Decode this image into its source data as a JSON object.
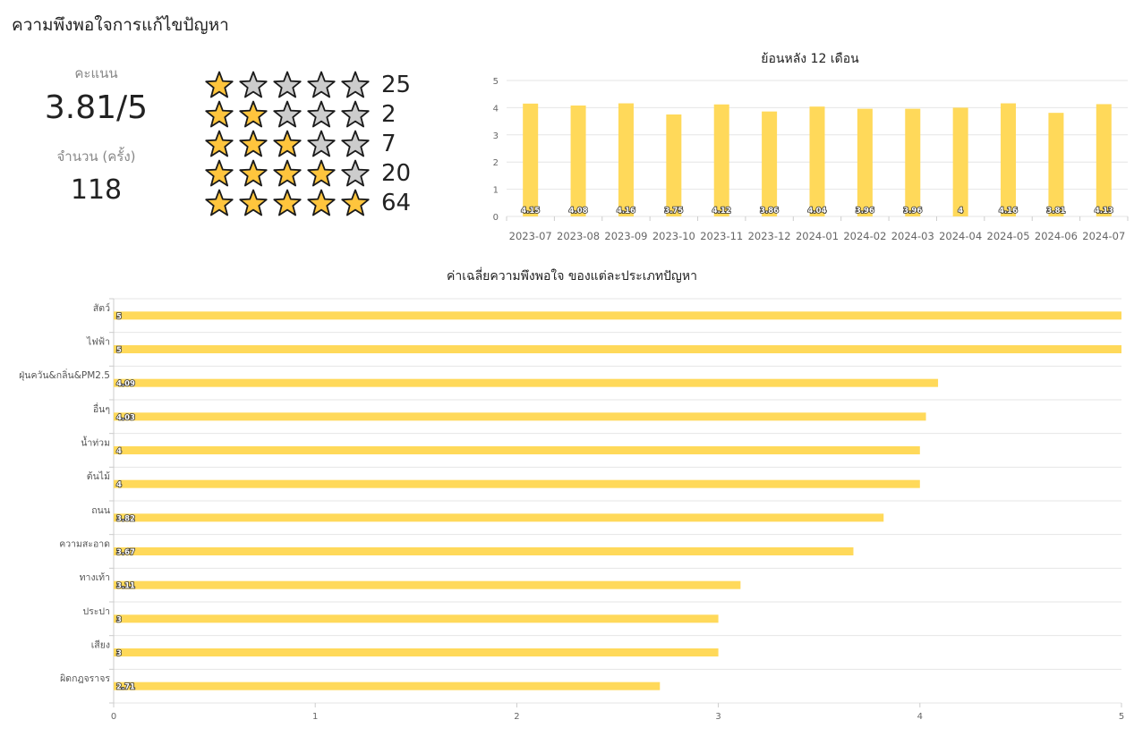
{
  "page": {
    "title": "ความพึงพอใจการแก้ไขปัญหา"
  },
  "summary": {
    "score_label": "คะแนน",
    "score_value": "3.81/5",
    "count_label": "จำนวน (ครั้ง)",
    "count_value": "118"
  },
  "rating_distribution": [
    {
      "stars": 1,
      "count": "25"
    },
    {
      "stars": 2,
      "count": "2"
    },
    {
      "stars": 3,
      "count": "7"
    },
    {
      "stars": 4,
      "count": "20"
    },
    {
      "stars": 5,
      "count": "64"
    }
  ],
  "colors": {
    "bar": "#ffd95a",
    "star_filled": "#ffc53d",
    "star_empty": "#cccccc",
    "grid": "#e6e6e6"
  },
  "chart_data": [
    {
      "type": "bar",
      "title": "ย้อนหลัง 12 เดือน",
      "orientation": "vertical",
      "categories": [
        "2023-07",
        "2023-08",
        "2023-09",
        "2023-10",
        "2023-11",
        "2023-12",
        "2024-01",
        "2024-02",
        "2024-03",
        "2024-04",
        "2024-05",
        "2024-06",
        "2024-07"
      ],
      "values": [
        4.15,
        4.08,
        4.16,
        3.75,
        4.12,
        3.86,
        4.04,
        3.96,
        3.96,
        4,
        4.16,
        3.81,
        4.13
      ],
      "labels": [
        "4.15",
        "4.08",
        "4.16",
        "3.75",
        "4.12",
        "3.86",
        "4.04",
        "3.96",
        "3.96",
        "4",
        "4.16",
        "3.81",
        "4.13"
      ],
      "ylim": [
        0,
        5
      ],
      "yticks": [
        "0",
        "1",
        "2",
        "3",
        "4",
        "5"
      ],
      "grid": true
    },
    {
      "type": "bar",
      "title": "ค่าเฉลี่ยความพึงพอใจ ของแต่ละประเภทปัญหา",
      "orientation": "horizontal",
      "categories": [
        "สัตว์",
        "ไฟฟ้า",
        "ฝุ่นควัน&กลิ่น&PM2.5",
        "อื่นๆ",
        "น้ำท่วม",
        "ต้นไม้",
        "ถนน",
        "ความสะอาด",
        "ทางเท้า",
        "ประปา",
        "เสียง",
        "ผิดกฎจราจร"
      ],
      "values": [
        5,
        5,
        4.09,
        4.03,
        4,
        4,
        3.82,
        3.67,
        3.11,
        3,
        3,
        2.71
      ],
      "labels": [
        "5",
        "5",
        "4.09",
        "4.03",
        "4",
        "4",
        "3.82",
        "3.67",
        "3.11",
        "3",
        "3",
        "2.71"
      ],
      "xlim": [
        0,
        5
      ],
      "xticks": [
        "0",
        "1",
        "2",
        "3",
        "4",
        "5"
      ],
      "grid": true
    }
  ]
}
